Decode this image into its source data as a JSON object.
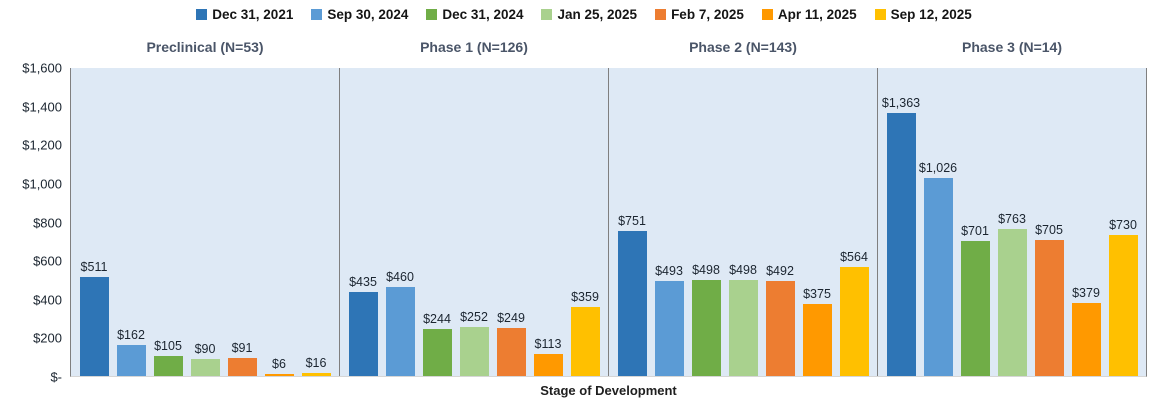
{
  "colors": {
    "plot_background": "#DEE9F5",
    "panel_separator": "#7F7F7F",
    "axis_bottom_line": "#D6D6D6",
    "panel_title_text": "#4A5568",
    "axis_text": "#1B2530",
    "legend_text": "#151515"
  },
  "chart_data": {
    "type": "bar",
    "title": "",
    "xlabel": "Stage of Development",
    "ylabel": "",
    "ylim": [
      0,
      1600
    ],
    "ytick_step": 200,
    "ytick_labels": [
      "$-",
      "$200",
      "$400",
      "$600",
      "$800",
      "$1,000",
      "$1,200",
      "$1,400",
      "$1,600"
    ],
    "grid": false,
    "legend_position": "top",
    "data_labels": true,
    "data_label_prefix": "$",
    "categories": [
      "Preclinical (N=53)",
      "Phase 1 (N=126)",
      "Phase 2 (N=143)",
      "Phase 3 (N=14)"
    ],
    "series": [
      {
        "name": "Dec 31, 2021",
        "color": "#2E75B6",
        "values": [
          511,
          435,
          751,
          1363
        ]
      },
      {
        "name": "Sep 30, 2024",
        "color": "#5B9BD5",
        "values": [
          162,
          460,
          493,
          1026
        ]
      },
      {
        "name": "Dec 31, 2024",
        "color": "#70AD47",
        "values": [
          105,
          244,
          498,
          701
        ]
      },
      {
        "name": "Jan 25, 2025",
        "color": "#A9D18E",
        "values": [
          90,
          252,
          498,
          763
        ]
      },
      {
        "name": "Feb 7, 2025",
        "color": "#ED7D31",
        "values": [
          91,
          249,
          492,
          705
        ]
      },
      {
        "name": "Apr 11, 2025",
        "color": "#FF9900",
        "values": [
          6,
          113,
          375,
          379
        ]
      },
      {
        "name": "Sep 12, 2025",
        "color": "#FFC000",
        "values": [
          16,
          359,
          564,
          730
        ]
      }
    ],
    "data_labels_formatted": [
      [
        "$511",
        "$435",
        "$751",
        "$1,363"
      ],
      [
        "$162",
        "$460",
        "$493",
        "$1,026"
      ],
      [
        "$105",
        "$244",
        "$498",
        "$701"
      ],
      [
        "$90",
        "$252",
        "$498",
        "$763"
      ],
      [
        "$91",
        "$249",
        "$492",
        "$705"
      ],
      [
        "$6",
        "$113",
        "$375",
        "$379"
      ],
      [
        "$16",
        "$359",
        "$564",
        "$730"
      ]
    ]
  }
}
